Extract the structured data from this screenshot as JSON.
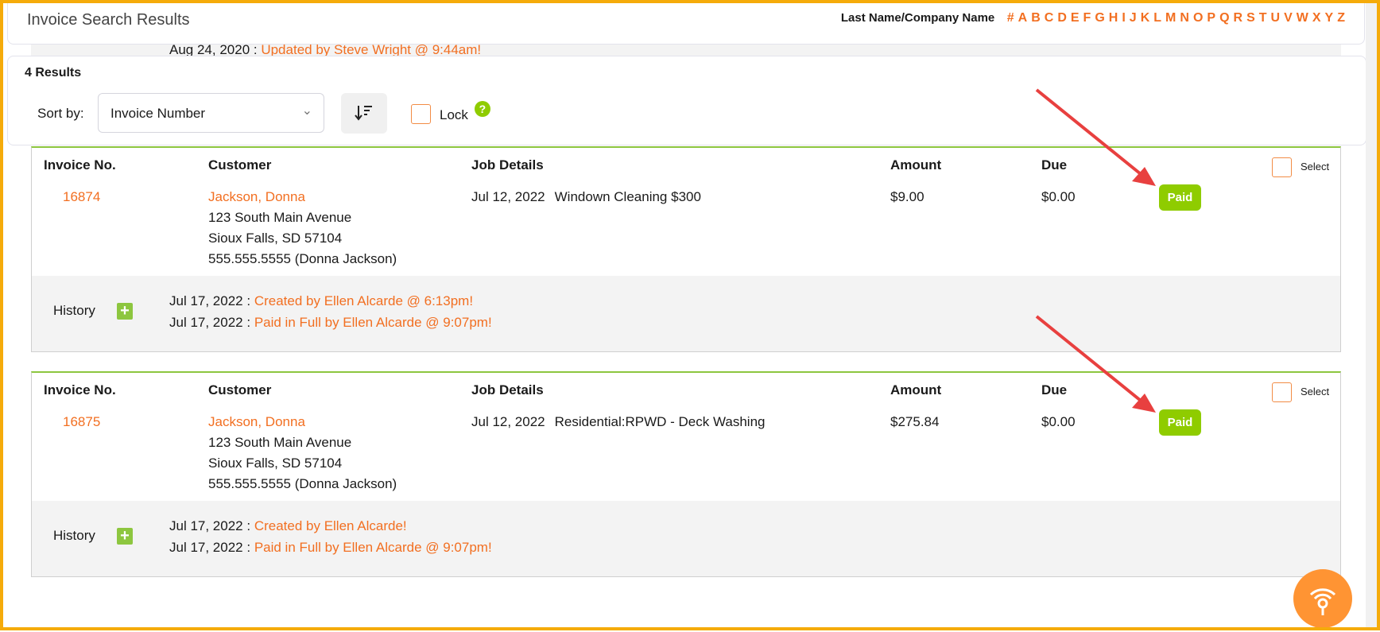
{
  "header": {
    "title": "Invoice Search Results",
    "filter_label": "Last Name/Company Name",
    "letters": [
      "#",
      "A",
      "B",
      "C",
      "D",
      "E",
      "F",
      "G",
      "H",
      "I",
      "J",
      "K",
      "L",
      "M",
      "N",
      "O",
      "P",
      "Q",
      "R",
      "S",
      "T",
      "U",
      "V",
      "W",
      "X",
      "Y",
      "Z"
    ]
  },
  "peek_history": {
    "date": "Aug 24, 2020 :",
    "text": "Updated by Steve Wright @ 9:44am!"
  },
  "results": {
    "count": "4 Results",
    "sort_label": "Sort by:",
    "sort_value": "Invoice Number",
    "lock_label": "Lock"
  },
  "columns": {
    "invoice": "Invoice No.",
    "customer": "Customer",
    "job": "Job Details",
    "amount": "Amount",
    "due": "Due",
    "select": "Select"
  },
  "invoices": [
    {
      "number": "16874",
      "customer": "Jackson, Donna",
      "address1": "123 South Main Avenue",
      "address2": "Sioux Falls, SD 57104",
      "phone": "555.555.5555 (Donna Jackson)",
      "job_date": "Jul 12, 2022",
      "job": "Windown Cleaning $300",
      "amount": "$9.00",
      "due": "$0.00",
      "status": "Paid",
      "history_label": "History",
      "history": [
        {
          "date": "Jul 17, 2022 :",
          "text": "Created by Ellen Alcarde @ 6:13pm!"
        },
        {
          "date": "Jul 17, 2022 :",
          "text": "Paid in Full by Ellen Alcarde @ 9:07pm!"
        }
      ]
    },
    {
      "number": "16875",
      "customer": "Jackson, Donna",
      "address1": "123 South Main Avenue",
      "address2": "Sioux Falls, SD 57104",
      "phone": "555.555.5555 (Donna Jackson)",
      "job_date": "Jul 12, 2022",
      "job": "Residential:RPWD - Deck Washing",
      "amount": "$275.84",
      "due": "$0.00",
      "status": "Paid",
      "history_label": "History",
      "history": [
        {
          "date": "Jul 17, 2022 :",
          "text": "Created by Ellen Alcarde!"
        },
        {
          "date": "Jul 17, 2022 :",
          "text": "Paid in Full by Ellen Alcarde @ 9:07pm!"
        }
      ]
    }
  ],
  "colors": {
    "accent": "#f26f21",
    "paid": "#8fcc00",
    "frame": "#f5ab0a",
    "fab": "#ff9433",
    "arrow": "#e8403f"
  },
  "icons": {
    "sort": "sort-descending-icon",
    "help": "question-circle-icon",
    "expand": "plus-square-icon",
    "fab": "broadcast-icon"
  }
}
